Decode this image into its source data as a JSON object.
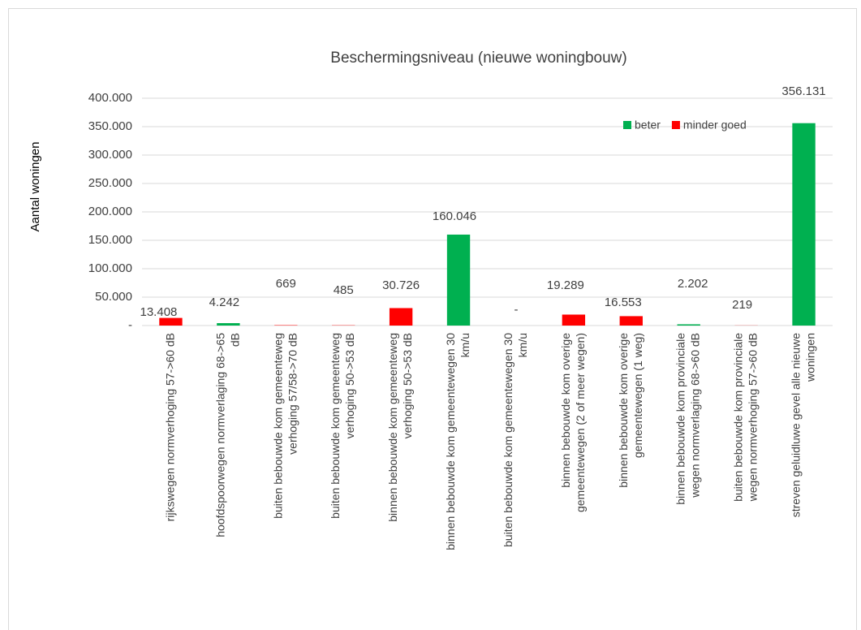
{
  "chart_data": {
    "type": "bar",
    "stacked": true,
    "title": "Beschermingsniveau (nieuwe woningbouw)",
    "y_label": "Aantal woningen",
    "categories": [
      "rijkswegen normverhoging 57->60 dB",
      "hoofdspoorwegen normverlaging 68->65 dB",
      "buiten bebouwde kom gemeenteweg verhoging 57/58->70 dB",
      "buiten bebouwde kom gemeenteweg verhoging 50->53 dB",
      "binnen bebouwde kom gemeenteweg verhoging 50->53 dB",
      "binnen bebouwde kom gemeentewegen 30 km/u",
      "buiten bebouwde kom gemeentewegen 30 km/u",
      "binnen bebouwde kom overige gemeentewegen (2 of meer wegen)",
      "binnen bebouwde kom overige gemeentewegen (1 weg)",
      "binnen bebouwde kom provinciale wegen normverlaging 68->60 dB",
      "buiten bebouwde kom provinciale wegen normverhoging 57->60 dB",
      "streven geluidluwe gevel alle nieuwe woningen"
    ],
    "series": [
      {
        "name": "beter",
        "color": "#00b050",
        "values": [
          null,
          4242,
          null,
          null,
          null,
          160046,
          0,
          null,
          null,
          2202,
          null,
          356131
        ],
        "value_labels": [
          null,
          "4.242",
          null,
          null,
          null,
          "160.046",
          "-",
          null,
          null,
          "2.202",
          null,
          "356.131"
        ]
      },
      {
        "name": "minder goed",
        "color": "#ff0000",
        "values": [
          13408,
          null,
          669,
          485,
          30726,
          null,
          null,
          19289,
          16553,
          null,
          219,
          null
        ],
        "value_labels": [
          "13.408",
          null,
          "669",
          "485",
          "30.726",
          null,
          null,
          "19.289",
          "16.553",
          null,
          "219",
          null
        ]
      }
    ],
    "ylim": [
      0,
      400000
    ],
    "yticks": [
      {
        "value": 0,
        "label": "-"
      },
      {
        "value": 50000,
        "label": "50.000"
      },
      {
        "value": 100000,
        "label": "100.000"
      },
      {
        "value": 150000,
        "label": "150.000"
      },
      {
        "value": 200000,
        "label": "200.000"
      },
      {
        "value": 250000,
        "label": "250.000"
      },
      {
        "value": 300000,
        "label": "300.000"
      },
      {
        "value": 350000,
        "label": "350.000"
      },
      {
        "value": 400000,
        "label": "400.000"
      }
    ],
    "grid": true,
    "legend": "top-right"
  }
}
